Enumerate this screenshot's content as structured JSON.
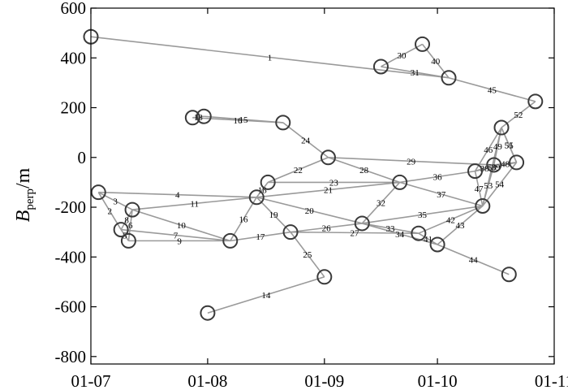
{
  "chart_data": {
    "type": "scatter",
    "title": "",
    "xlabel": "",
    "ylabel": {
      "main": "B",
      "sub": "perp",
      "unit": "/m"
    },
    "x_axis": {
      "type": "date",
      "range": [
        "07-01",
        "11-01"
      ],
      "ticks": [
        {
          "value": "07-01",
          "label": "01-07"
        },
        {
          "value": "08-01",
          "label": "01-08"
        },
        {
          "value": "09-01",
          "label": "01-09"
        },
        {
          "value": "10-01",
          "label": "01-10"
        },
        {
          "value": "11-01",
          "label": "01-11"
        }
      ]
    },
    "ylim": [
      -830,
      600
    ],
    "yticks": [
      600,
      400,
      200,
      0,
      -200,
      -400,
      -600,
      -800
    ],
    "grid": false,
    "nodes": [
      {
        "id": "A",
        "date": "07-01",
        "y": 485
      },
      {
        "id": "B",
        "date": "09-16",
        "y": 365
      },
      {
        "id": "C",
        "date": "09-27",
        "y": 455
      },
      {
        "id": "D",
        "date": "10-04",
        "y": 320
      },
      {
        "id": "E",
        "date": "10-27",
        "y": 225
      },
      {
        "id": "F",
        "date": "07-28",
        "y": 160
      },
      {
        "id": "G",
        "date": "07-31",
        "y": 165
      },
      {
        "id": "H",
        "date": "08-21",
        "y": 140
      },
      {
        "id": "I",
        "date": "10-18",
        "y": 120
      },
      {
        "id": "J",
        "date": "09-02",
        "y": 0
      },
      {
        "id": "K",
        "date": "10-22",
        "y": -20
      },
      {
        "id": "L",
        "date": "10-16",
        "y": -30
      },
      {
        "id": "M",
        "date": "10-11",
        "y": -55
      },
      {
        "id": "N",
        "date": "09-21",
        "y": -100
      },
      {
        "id": "O",
        "date": "08-17",
        "y": -100
      },
      {
        "id": "P",
        "date": "07-03",
        "y": -140
      },
      {
        "id": "Q",
        "date": "08-14",
        "y": -160
      },
      {
        "id": "R",
        "date": "10-13",
        "y": -195
      },
      {
        "id": "S",
        "date": "07-12",
        "y": -210
      },
      {
        "id": "T",
        "date": "09-11",
        "y": -265
      },
      {
        "id": "U",
        "date": "07-09",
        "y": -290
      },
      {
        "id": "V",
        "date": "08-23",
        "y": -300
      },
      {
        "id": "W",
        "date": "09-26",
        "y": -305
      },
      {
        "id": "X",
        "date": "07-11",
        "y": -335
      },
      {
        "id": "Y",
        "date": "08-07",
        "y": -335
      },
      {
        "id": "Z",
        "date": "10-01",
        "y": -350
      },
      {
        "id": "AA",
        "date": "10-20",
        "y": -470
      },
      {
        "id": "AB",
        "date": "09-01",
        "y": -480
      },
      {
        "id": "AC",
        "date": "08-01",
        "y": -625
      }
    ],
    "edges": [
      {
        "from": "A",
        "to": "D",
        "label": "1"
      },
      {
        "from": "P",
        "to": "U",
        "label": "2"
      },
      {
        "from": "P",
        "to": "S",
        "label": "3"
      },
      {
        "from": "P",
        "to": "Q",
        "label": "4"
      },
      {
        "from": "X",
        "to": "Y",
        "label": "9"
      },
      {
        "from": "S",
        "to": "X",
        "label": "6"
      },
      {
        "from": "U",
        "to": "X",
        "label": "5"
      },
      {
        "from": "U",
        "to": "S",
        "label": "8"
      },
      {
        "from": "U",
        "to": "Y",
        "label": "7"
      },
      {
        "from": "S",
        "to": "Y",
        "label": "10"
      },
      {
        "from": "S",
        "to": "Q",
        "label": "11"
      },
      {
        "from": "AC",
        "to": "AB",
        "label": "14"
      },
      {
        "from": "F",
        "to": "G",
        "label": "18"
      },
      {
        "from": "G",
        "to": "H",
        "label": "15"
      },
      {
        "from": "F",
        "to": "H",
        "label": "16"
      },
      {
        "from": "Y",
        "to": "Q",
        "label": "16"
      },
      {
        "from": "Y",
        "to": "V",
        "label": "17"
      },
      {
        "from": "Q",
        "to": "O",
        "label": "18"
      },
      {
        "from": "Q",
        "to": "V",
        "label": "19"
      },
      {
        "from": "Q",
        "to": "T",
        "label": "20"
      },
      {
        "from": "Q",
        "to": "N",
        "label": "21"
      },
      {
        "from": "O",
        "to": "J",
        "label": "22"
      },
      {
        "from": "O",
        "to": "N",
        "label": "23"
      },
      {
        "from": "H",
        "to": "J",
        "label": "24"
      },
      {
        "from": "V",
        "to": "AB",
        "label": "25"
      },
      {
        "from": "V",
        "to": "T",
        "label": "26"
      },
      {
        "from": "V",
        "to": "W",
        "label": "27"
      },
      {
        "from": "J",
        "to": "N",
        "label": "28"
      },
      {
        "from": "J",
        "to": "L",
        "label": "29"
      },
      {
        "from": "B",
        "to": "C",
        "label": "30"
      },
      {
        "from": "B",
        "to": "D",
        "label": "31"
      },
      {
        "from": "T",
        "to": "N",
        "label": "32"
      },
      {
        "from": "T",
        "to": "W",
        "label": "33"
      },
      {
        "from": "T",
        "to": "Z",
        "label": "34"
      },
      {
        "from": "T",
        "to": "R",
        "label": "35"
      },
      {
        "from": "N",
        "to": "M",
        "label": "36"
      },
      {
        "from": "N",
        "to": "R",
        "label": "37"
      },
      {
        "from": "M",
        "to": "L",
        "label": "38"
      },
      {
        "from": "M",
        "to": "K",
        "label": "39"
      },
      {
        "from": "C",
        "to": "D",
        "label": "40"
      },
      {
        "from": "W",
        "to": "Z",
        "label": "41"
      },
      {
        "from": "W",
        "to": "R",
        "label": "42"
      },
      {
        "from": "Z",
        "to": "R",
        "label": "43"
      },
      {
        "from": "Z",
        "to": "AA",
        "label": "44"
      },
      {
        "from": "D",
        "to": "E",
        "label": "45"
      },
      {
        "from": "I",
        "to": "M",
        "label": "46"
      },
      {
        "from": "R",
        "to": "M",
        "label": "47"
      },
      {
        "from": "L",
        "to": "K",
        "label": "48"
      },
      {
        "from": "I",
        "to": "L",
        "label": "49"
      },
      {
        "from": "I",
        "to": "R",
        "label": "50"
      },
      {
        "from": "I",
        "to": "K",
        "label": "51"
      },
      {
        "from": "E",
        "to": "I",
        "label": "52"
      },
      {
        "from": "R",
        "to": "L",
        "label": "53"
      },
      {
        "from": "R",
        "to": "K",
        "label": "54"
      },
      {
        "from": "K",
        "to": "I",
        "label": "55"
      }
    ],
    "colors": {
      "edge": "#9a9a9a",
      "node": "#3a3a3a",
      "axis": "#000000"
    }
  }
}
